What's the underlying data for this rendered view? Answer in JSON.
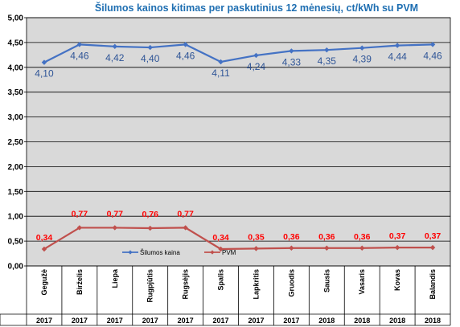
{
  "chart_data": {
    "type": "line",
    "title": "Šilumos kainos kitimas per paskutinius 12 mėnesių, ct/kWh su PVM",
    "categories": [
      "Gegužė",
      "Birželis",
      "Liepa",
      "Rugpjūtis",
      "Rugsėjis",
      "Spalis",
      "Lapkritis",
      "Gruodis",
      "Sausis",
      "Vasaris",
      "Kovas",
      "Balandis"
    ],
    "years": [
      "2017",
      "2017",
      "2017",
      "2017",
      "2017",
      "2017",
      "2017",
      "2017",
      "2018",
      "2018",
      "2018",
      "2018"
    ],
    "series": [
      {
        "name": "Šilumos kaina",
        "color": "#4472c4",
        "label_color": "#2f5597",
        "values": [
          4.1,
          4.46,
          4.42,
          4.4,
          4.46,
          4.11,
          4.24,
          4.33,
          4.35,
          4.39,
          4.44,
          4.46
        ],
        "labels": [
          "4,10",
          "4,46",
          "4,42",
          "4,40",
          "4,46",
          "4,11",
          "4,24",
          "4,33",
          "4,35",
          "4,39",
          "4,44",
          "4,46"
        ]
      },
      {
        "name": "PVM",
        "color": "#c0504d",
        "label_color": "#ff0000",
        "values": [
          0.34,
          0.77,
          0.77,
          0.76,
          0.77,
          0.34,
          0.35,
          0.36,
          0.36,
          0.36,
          0.37,
          0.37
        ],
        "labels": [
          "0,34",
          "0,77",
          "0,77",
          "0,76",
          "0,77",
          "0,34",
          "0,35",
          "0,36",
          "0,36",
          "0,36",
          "0,37",
          "0,37"
        ]
      }
    ],
    "ylim": [
      0,
      5
    ],
    "yticks": [
      "0,00",
      "0,50",
      "1,00",
      "1,50",
      "2,00",
      "2,50",
      "3,00",
      "3,50",
      "4,00",
      "4,50",
      "5,00"
    ],
    "grid": true,
    "legend": "bottom-left inside plot",
    "plot_background": "#d9d9d9"
  }
}
